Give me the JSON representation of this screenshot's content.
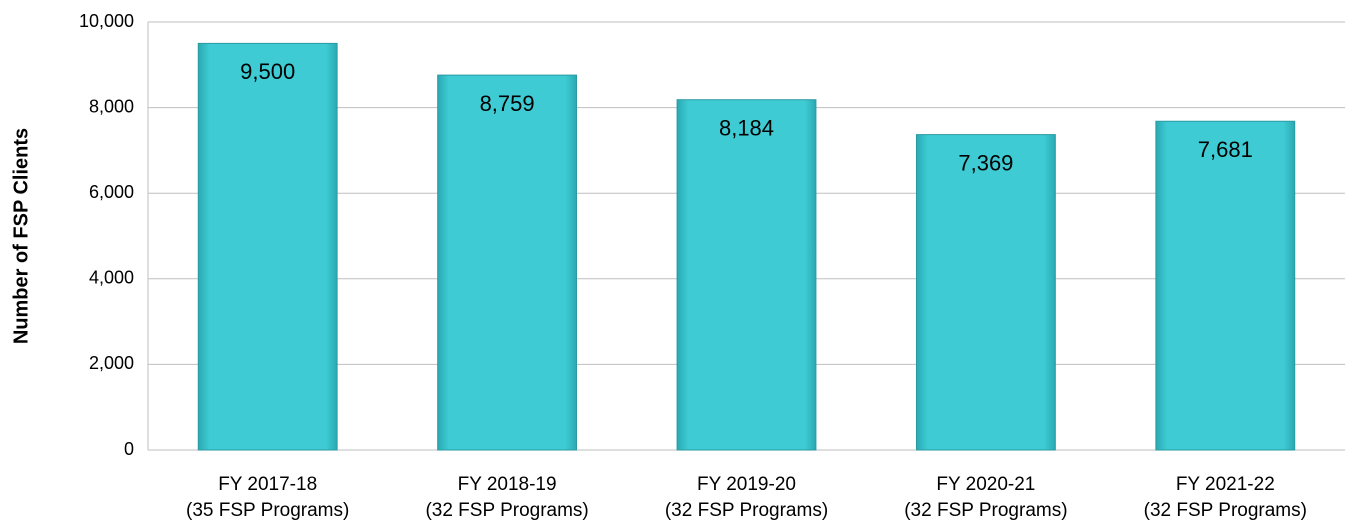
{
  "chart_data": {
    "type": "bar",
    "y_label": "Number of FSP Clients",
    "categories": [
      "FY 2017-18\n(35 FSP Programs)",
      "FY 2018-19\n(32 FSP Programs)",
      "FY 2019-20\n(32 FSP Programs)",
      "FY 2020-21\n(32 FSP Programs)",
      "FY 2021-22\n(32 FSP Programs)"
    ],
    "values": [
      9500,
      8759,
      8184,
      7369,
      7681
    ],
    "value_labels": [
      "9,500",
      "8,759",
      "8,184",
      "7,369",
      "7,681"
    ],
    "color": "#3ecbd4",
    "ylim": [
      0,
      10000
    ],
    "yticks": [
      0,
      {
        "value": 2000,
        "label": "2,000"
      },
      {
        "value": 4000,
        "label": "4,000"
      },
      {
        "value": 6000,
        "label": "6,000"
      },
      {
        "value": 8000,
        "label": "8,000"
      },
      {
        "value": 10000,
        "label": "10,000"
      }
    ],
    "grid": true
  }
}
